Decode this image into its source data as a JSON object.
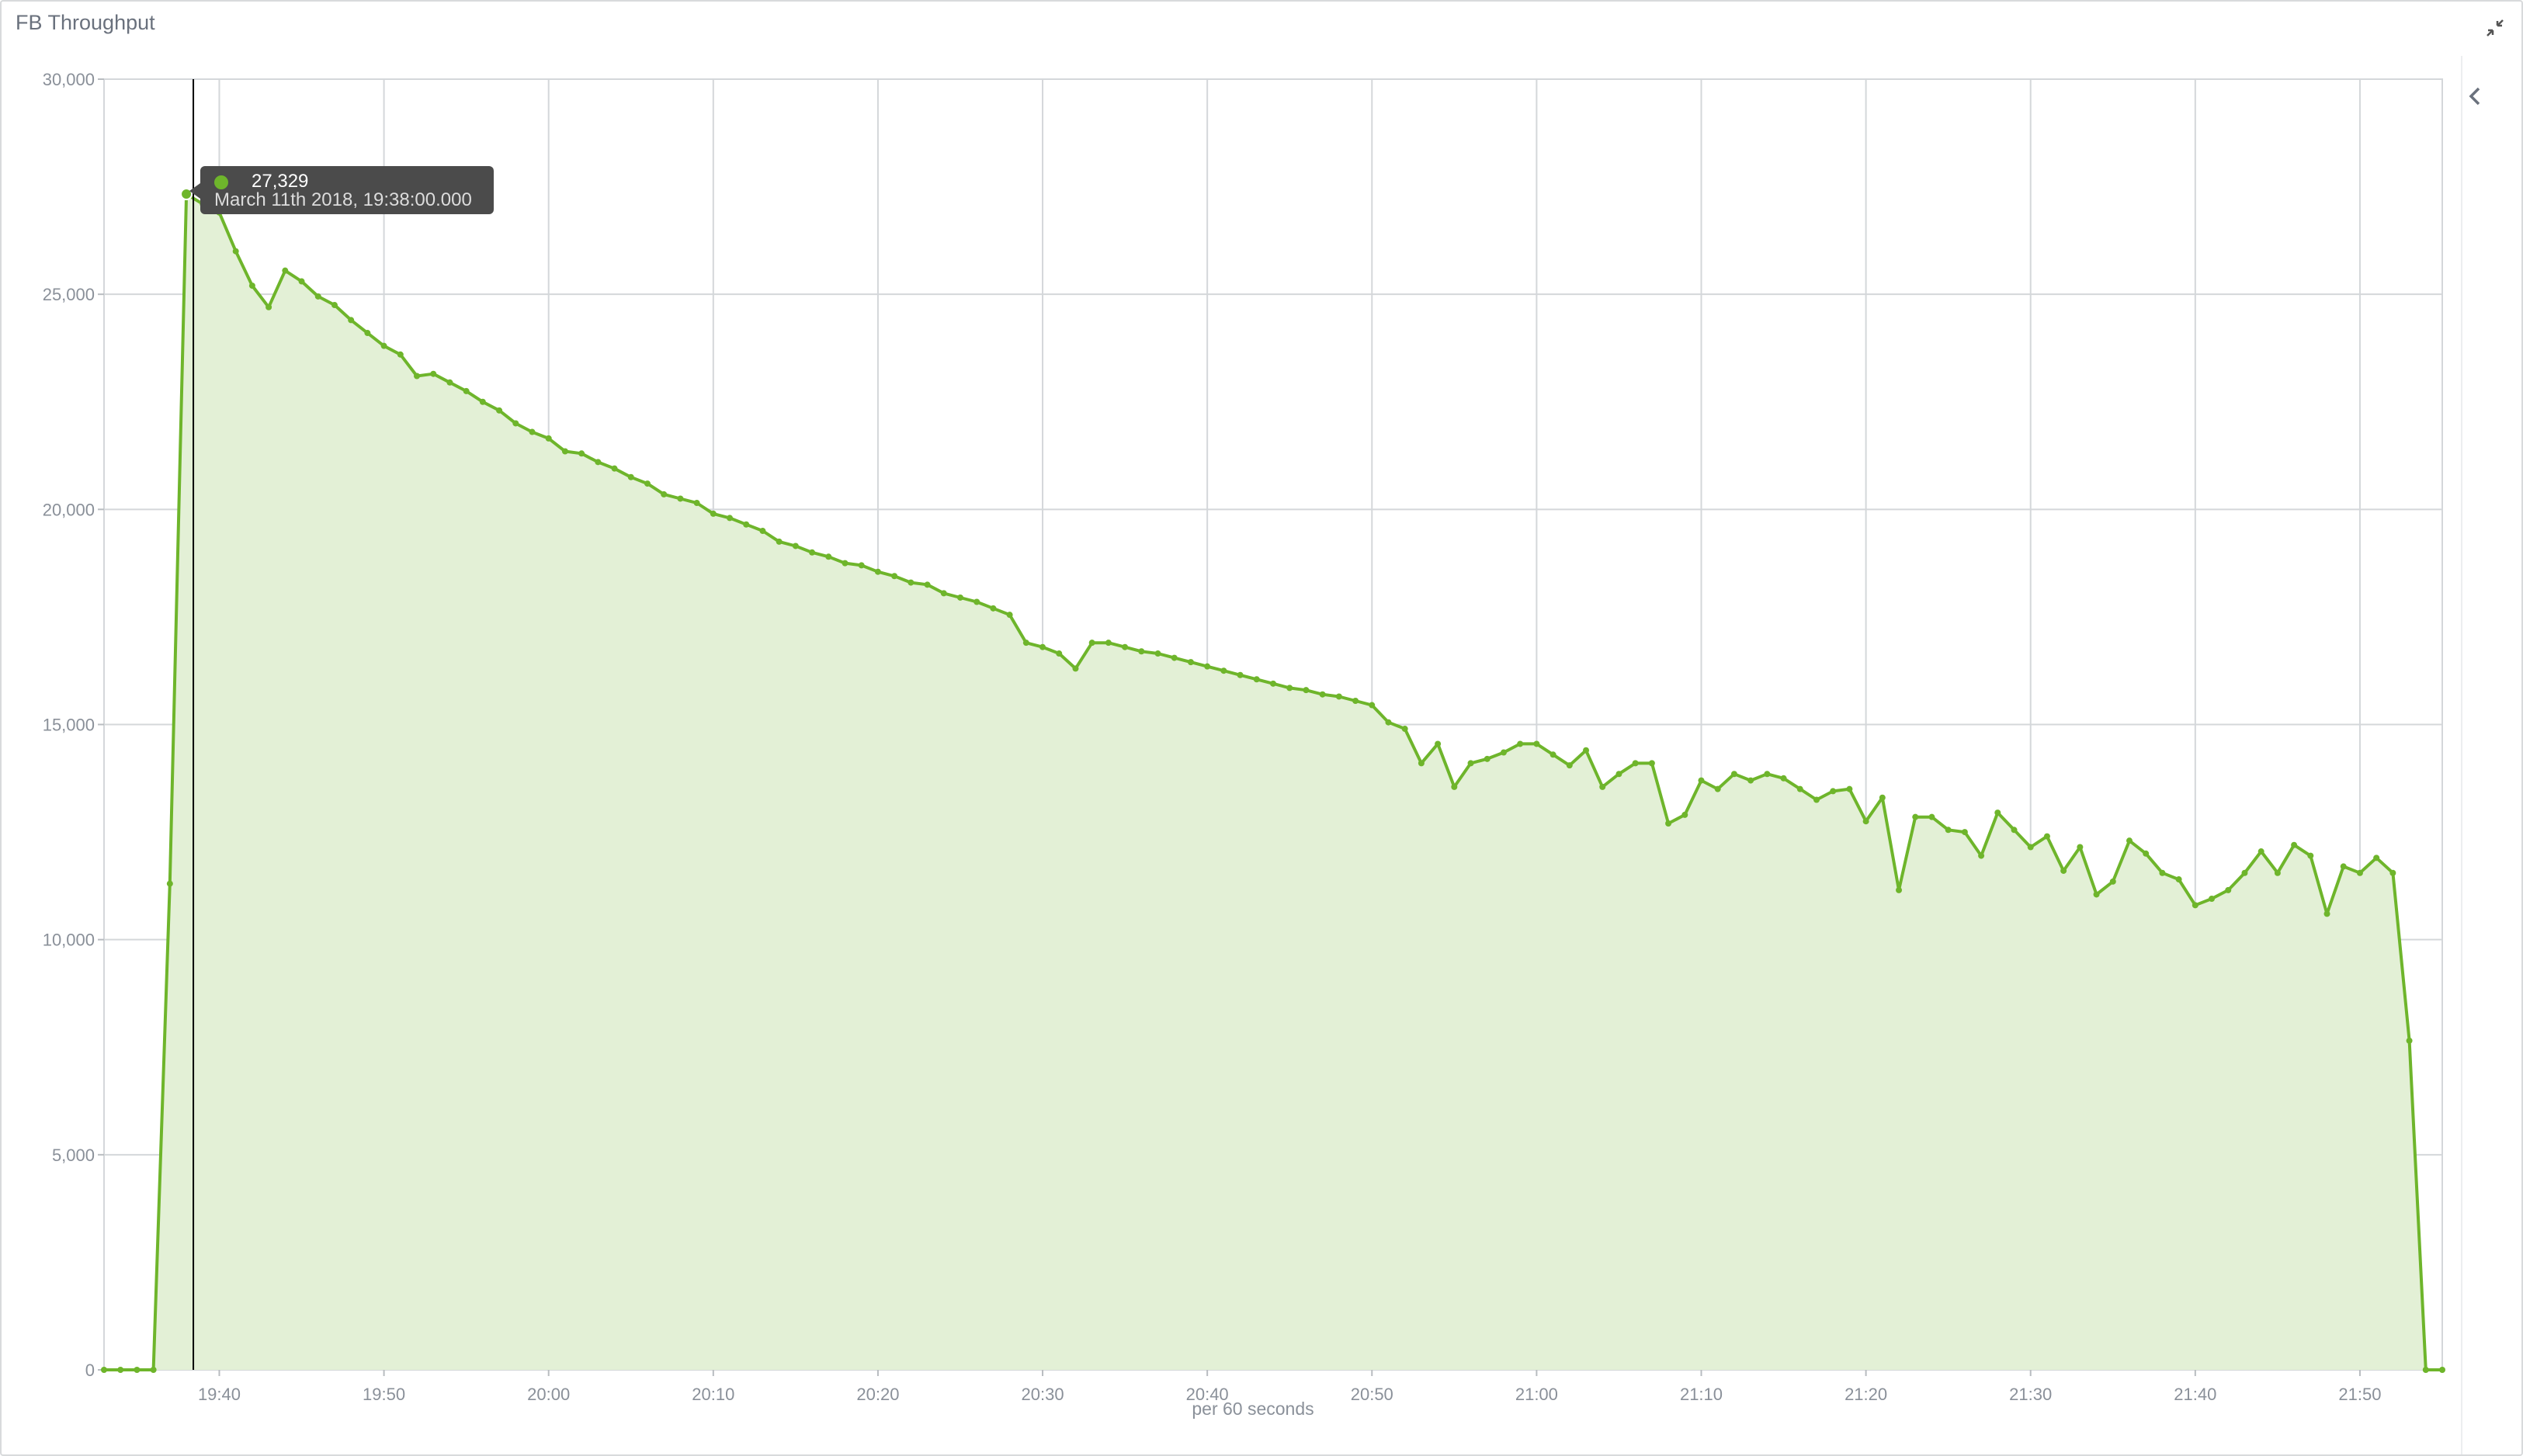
{
  "panel": {
    "title": "FB Throughput"
  },
  "tooltip": {
    "value": "27,329",
    "time": "March 11th 2018, 19:38:00.000"
  },
  "icons": {
    "minimize": "minimize-icon",
    "collapse": "chevron-left-icon"
  },
  "colors": {
    "series": "#6eb52b",
    "fill": "#e3f0d6",
    "grid": "#d4d7da",
    "crosshair": "#000000"
  },
  "chart_data": {
    "type": "area",
    "title": "",
    "xlabel": "per 60 seconds",
    "ylabel": "",
    "x_start": "19:33",
    "x_step_minutes": 1,
    "xlim": [
      "19:33",
      "21:55"
    ],
    "ylim": [
      0,
      30000
    ],
    "grid": true,
    "legend": "none",
    "x_ticks": [
      "19:40",
      "19:50",
      "20:00",
      "20:10",
      "20:20",
      "20:30",
      "20:40",
      "20:50",
      "21:00",
      "21:10",
      "21:20",
      "21:30",
      "21:40",
      "21:50"
    ],
    "y_ticks": [
      "0",
      "5,000",
      "10,000",
      "15,000",
      "20,000",
      "25,000",
      "30,000"
    ],
    "values": [
      0,
      0,
      0,
      0,
      11300,
      27329,
      27100,
      26900,
      26000,
      25200,
      24700,
      25550,
      25300,
      24950,
      24750,
      24400,
      24100,
      23800,
      23600,
      23100,
      23150,
      22950,
      22750,
      22500,
      22300,
      22000,
      21800,
      21650,
      21350,
      21300,
      21100,
      20950,
      20750,
      20600,
      20350,
      20250,
      20150,
      19900,
      19800,
      19650,
      19500,
      19250,
      19150,
      19000,
      18900,
      18750,
      18700,
      18550,
      18450,
      18300,
      18250,
      18050,
      17950,
      17850,
      17700,
      17550,
      16900,
      16800,
      16650,
      16300,
      16900,
      16900,
      16800,
      16700,
      16650,
      16550,
      16450,
      16350,
      16250,
      16150,
      16050,
      15950,
      15850,
      15800,
      15700,
      15650,
      15550,
      15450,
      15050,
      14900,
      14100,
      14550,
      13550,
      14100,
      14200,
      14350,
      14550,
      14550,
      14300,
      14050,
      14400,
      13550,
      13850,
      14100,
      14100,
      12700,
      12900,
      13700,
      13500,
      13850,
      13700,
      13850,
      13750,
      13500,
      13250,
      13450,
      13500,
      12750,
      13300,
      11150,
      12850,
      12850,
      12550,
      12500,
      11950,
      12950,
      12550,
      12150,
      12400,
      11600,
      12150,
      11050,
      11350,
      12300,
      12000,
      11550,
      11400,
      10800,
      10950,
      11150,
      11550,
      12050,
      11550,
      12200,
      11950,
      10600,
      11700,
      11550,
      11900,
      11550,
      7650,
      0,
      0
    ],
    "highlight": {
      "x": "19:38",
      "y": 27329
    }
  }
}
